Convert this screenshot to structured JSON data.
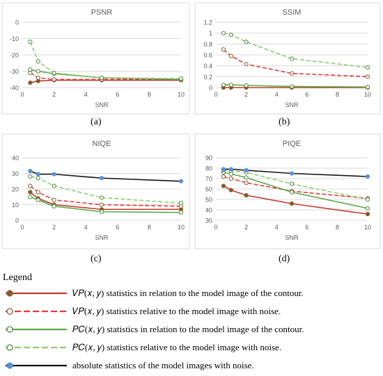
{
  "chart_data": [
    {
      "id": "a",
      "type": "line",
      "title": "PSNR",
      "xlabel": "SNR",
      "ylabel": "",
      "ylim": [
        -40,
        0
      ],
      "yticks": [
        0,
        -10,
        -20,
        -30,
        -40
      ],
      "xlim": [
        0,
        10
      ],
      "xticks": [
        0,
        2,
        4,
        6,
        8,
        10
      ],
      "grid": true,
      "caption": "(a)",
      "series": [
        {
          "key": "vp_contour",
          "x": [
            0.5,
            1,
            2,
            5,
            10
          ],
          "y": [
            -37,
            -36,
            -35.5,
            -35.5,
            -35.5
          ]
        },
        {
          "key": "vp_noise",
          "x": [
            0.5,
            1,
            2,
            5,
            10
          ],
          "y": [
            -31,
            -34,
            -35,
            -35,
            -35
          ]
        },
        {
          "key": "pc_contour",
          "x": [
            0.5,
            1,
            2,
            5,
            10
          ],
          "y": [
            -29,
            -30,
            -31.5,
            -34,
            -35
          ]
        },
        {
          "key": "pc_noise",
          "x": [
            0.5,
            1,
            2,
            5,
            10
          ],
          "y": [
            -12,
            -24,
            -31,
            -34,
            -34.5
          ]
        }
      ]
    },
    {
      "id": "b",
      "type": "line",
      "title": "SSIM",
      "xlabel": "SNR",
      "ylabel": "",
      "ylim": [
        0,
        1.2
      ],
      "yticks": [
        0,
        0.2,
        0.4,
        0.6,
        0.8,
        1,
        1.2
      ],
      "xlim": [
        0,
        10
      ],
      "xticks": [
        0,
        2,
        4,
        6,
        8,
        10
      ],
      "grid": true,
      "caption": "(b)",
      "series": [
        {
          "key": "vp_contour",
          "x": [
            0.5,
            1,
            2,
            5,
            10
          ],
          "y": [
            0.0,
            0.0,
            0.0,
            0.0,
            0.0
          ]
        },
        {
          "key": "vp_noise",
          "x": [
            0.5,
            1,
            2,
            5,
            10
          ],
          "y": [
            0.7,
            0.58,
            0.43,
            0.26,
            0.2
          ]
        },
        {
          "key": "pc_contour",
          "x": [
            0.5,
            1,
            2,
            5,
            10
          ],
          "y": [
            0.05,
            0.05,
            0.04,
            0.02,
            0.01
          ]
        },
        {
          "key": "pc_noise",
          "x": [
            0.5,
            1,
            2,
            5,
            10
          ],
          "y": [
            1.0,
            0.97,
            0.84,
            0.53,
            0.37
          ]
        }
      ]
    },
    {
      "id": "c",
      "type": "line",
      "title": "NIQE",
      "xlabel": "SNR",
      "ylabel": "",
      "ylim": [
        0,
        40
      ],
      "yticks": [
        0,
        10,
        20,
        30,
        40
      ],
      "xlim": [
        0,
        10
      ],
      "xticks": [
        0,
        2,
        4,
        6,
        8,
        10
      ],
      "grid": true,
      "caption": "(c)",
      "series": [
        {
          "key": "vp_contour",
          "x": [
            0.5,
            1,
            2,
            5,
            10
          ],
          "y": [
            18,
            14,
            10,
            7,
            7
          ]
        },
        {
          "key": "vp_noise",
          "x": [
            0.5,
            1,
            2,
            5,
            10
          ],
          "y": [
            22,
            18,
            13,
            10,
            9
          ]
        },
        {
          "key": "pc_contour",
          "x": [
            0.5,
            1,
            2,
            5,
            10
          ],
          "y": [
            15,
            13,
            9,
            5.5,
            5
          ]
        },
        {
          "key": "pc_noise",
          "x": [
            0.5,
            1,
            2,
            5,
            10
          ],
          "y": [
            28,
            27,
            22,
            14.5,
            11
          ]
        },
        {
          "key": "abs_noise",
          "x": [
            0.5,
            1,
            2,
            5,
            10
          ],
          "y": [
            31.5,
            29.5,
            29.5,
            27,
            25
          ]
        }
      ]
    },
    {
      "id": "d",
      "type": "line",
      "title": "PIQE",
      "xlabel": "SNR",
      "ylabel": "",
      "ylim": [
        30,
        90
      ],
      "yticks": [
        30,
        40,
        50,
        60,
        70,
        80,
        90
      ],
      "xlim": [
        0,
        10
      ],
      "xticks": [
        0,
        2,
        4,
        6,
        8,
        10
      ],
      "grid": true,
      "caption": "(d)",
      "series": [
        {
          "key": "vp_contour",
          "x": [
            0.5,
            1,
            2,
            5,
            10
          ],
          "y": [
            63,
            59,
            54,
            46,
            36
          ]
        },
        {
          "key": "vp_noise",
          "x": [
            0.5,
            1,
            2,
            5,
            10
          ],
          "y": [
            72,
            70,
            66,
            58,
            51
          ]
        },
        {
          "key": "pc_contour",
          "x": [
            0.5,
            1,
            2,
            5,
            10
          ],
          "y": [
            76,
            74.5,
            71,
            57,
            41.5
          ]
        },
        {
          "key": "pc_noise",
          "x": [
            0.5,
            1,
            2,
            5,
            10
          ],
          "y": [
            78,
            77.5,
            76,
            65,
            50
          ]
        },
        {
          "key": "abs_noise",
          "x": [
            0.5,
            1,
            2,
            5,
            10
          ],
          "y": [
            79,
            79,
            78,
            75,
            72
          ]
        }
      ]
    }
  ],
  "legend": {
    "title": "Legend",
    "items": [
      {
        "key": "vp_contour",
        "label": "𝑉𝑃(𝑥, 𝑦)  statistics in relation to the model image of the contour.",
        "color": "#c0392b",
        "marker": "#8b5a2b",
        "dashed": false,
        "hollow": false
      },
      {
        "key": "vp_noise",
        "label": "𝑉𝑃(𝑥, 𝑦)  statistics relative to the model image with noise.",
        "color": "#e0383c",
        "marker": "#8b5a2b",
        "dashed": true,
        "hollow": true
      },
      {
        "key": "pc_contour",
        "label": "𝑃𝐶(𝑥, 𝑦)  statistics in relation to the model image of the contour.",
        "color": "#5aa846",
        "marker": "#4e8a3a",
        "dashed": false,
        "hollow": true
      },
      {
        "key": "pc_noise",
        "label": "𝑃𝐶(𝑥, 𝑦)  statistics relative to the model image with noise.",
        "color": "#8fcc72",
        "marker": "#4e8a3a",
        "dashed": true,
        "hollow": true
      },
      {
        "key": "abs_noise",
        "label": "absolute statistics of the model images with noise.",
        "color": "#111111",
        "marker": "#5b8fd9",
        "dashed": false,
        "hollow": false
      }
    ]
  }
}
